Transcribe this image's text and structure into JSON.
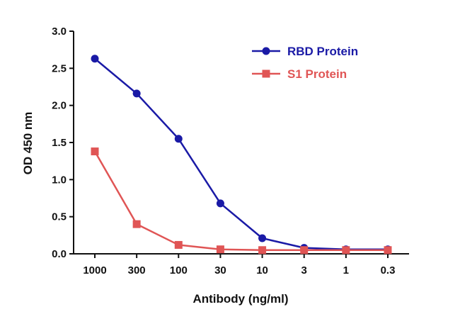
{
  "chart_data": {
    "type": "line",
    "title": "",
    "xlabel": "Antibody (ng/ml)",
    "ylabel": "OD 450 nm",
    "categories": [
      "1000",
      "300",
      "100",
      "30",
      "10",
      "3",
      "1",
      "0.3"
    ],
    "ylim": [
      0,
      3.0
    ],
    "yticks": [
      "0.0",
      "0.5",
      "1.0",
      "1.5",
      "2.0",
      "2.5",
      "3.0"
    ],
    "grid": false,
    "legend_position": "top-right",
    "series": [
      {
        "name": "RBD Protein",
        "color": "#1a1aa6",
        "marker": "circle",
        "values": [
          2.63,
          2.16,
          1.55,
          0.68,
          0.21,
          0.08,
          0.06,
          0.06
        ]
      },
      {
        "name": "S1 Protein",
        "color": "#e05555",
        "marker": "square",
        "values": [
          1.38,
          0.4,
          0.12,
          0.06,
          0.05,
          0.05,
          0.05,
          0.05
        ]
      }
    ]
  }
}
